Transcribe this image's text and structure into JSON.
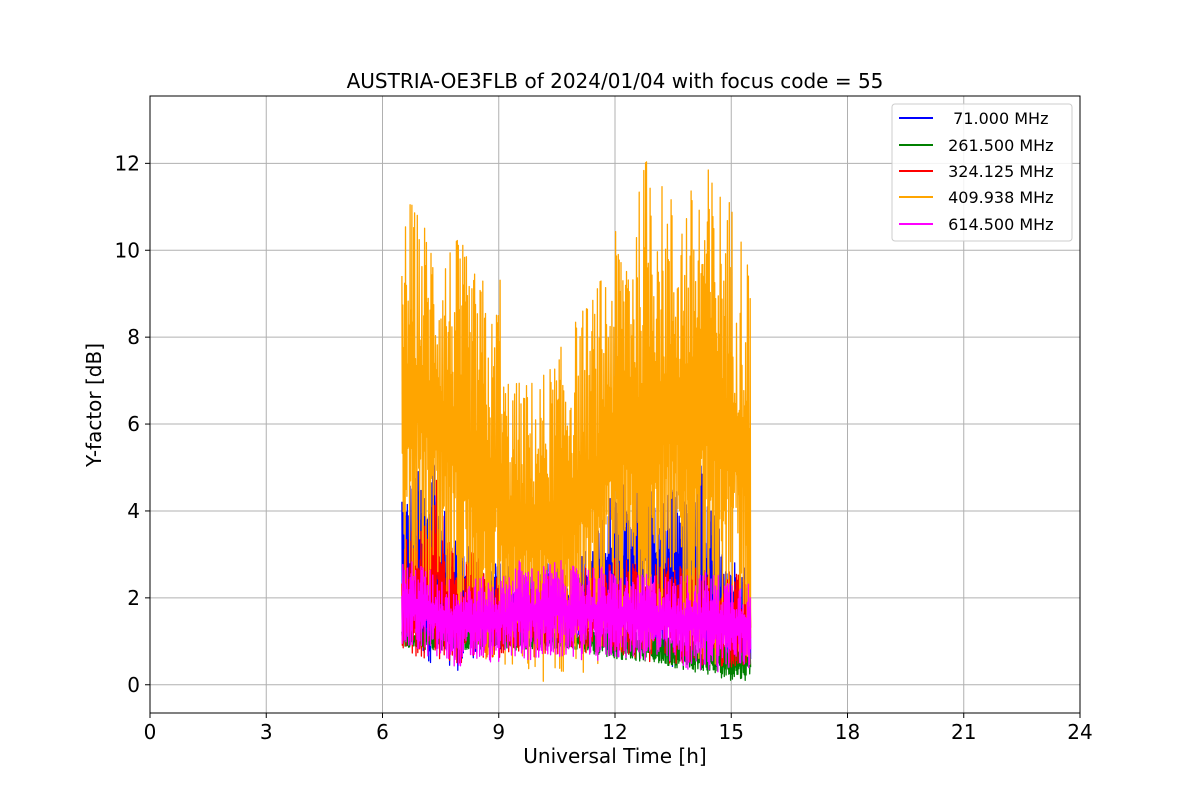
{
  "chart_data": {
    "type": "line",
    "title": "AUSTRIA-OE3FLB of 2024/01/04 with focus code = 55",
    "xlabel": "Universal Time [h]",
    "ylabel": "Y-factor [dB]",
    "xlim": [
      0,
      24
    ],
    "ylim": [
      -0.65,
      13.55
    ],
    "xticks": [
      0,
      3,
      6,
      9,
      12,
      15,
      18,
      21,
      24
    ],
    "yticks": [
      0,
      2,
      4,
      6,
      8,
      10,
      12
    ],
    "grid": true,
    "legend_position": "top-right",
    "series": [
      {
        "name": "  71.000 MHz",
        "color": "#0000ff",
        "x": [
          6.5,
          6.6,
          6.8,
          7.0,
          7.2,
          7.3,
          7.5,
          7.7,
          8.0,
          8.3,
          8.6,
          9.0,
          9.5,
          10.0,
          10.5,
          11.0,
          11.5,
          11.8,
          12.0,
          12.2,
          12.5,
          12.7,
          12.8,
          12.9,
          13.0,
          13.2,
          13.4,
          13.6,
          13.8,
          14.0,
          14.2,
          14.3,
          14.5,
          14.8,
          15.0,
          15.3,
          15.5
        ],
        "min": [
          1.0,
          0.9,
          0.8,
          0.6,
          0.5,
          0.5,
          0.4,
          0.0,
          0.4,
          0.6,
          0.7,
          0.8,
          0.8,
          0.8,
          0.8,
          0.9,
          0.9,
          0.8,
          0.8,
          0.8,
          0.8,
          0.7,
          0.7,
          0.7,
          0.7,
          0.6,
          0.4,
          0.4,
          0.5,
          0.4,
          0.4,
          0.6,
          0.5,
          0.4,
          0.3,
          0.4,
          0.4
        ],
        "max": [
          4.8,
          4.3,
          5.2,
          4.8,
          5.0,
          6.5,
          4.2,
          3.8,
          3.5,
          3.1,
          3.0,
          2.8,
          2.8,
          2.8,
          2.8,
          2.9,
          3.4,
          4.2,
          4.6,
          4.7,
          4.8,
          5.9,
          6.6,
          5.8,
          4.5,
          4.2,
          4.6,
          4.5,
          4.2,
          4.6,
          5.3,
          4.8,
          4.0,
          3.6,
          3.0,
          2.8,
          2.8
        ]
      },
      {
        "name": " 261.500 MHz",
        "color": "#008000",
        "x": [
          6.5,
          7.0,
          8.0,
          9.0,
          10.0,
          11.0,
          12.0,
          13.0,
          13.5,
          14.0,
          14.5,
          15.0,
          15.5
        ],
        "min": [
          0.9,
          0.8,
          0.8,
          0.8,
          0.8,
          0.8,
          0.6,
          0.5,
          0.4,
          0.3,
          0.2,
          0.1,
          0.1
        ],
        "max": [
          1.3,
          1.3,
          1.3,
          1.3,
          1.3,
          1.3,
          1.3,
          1.2,
          1.1,
          1.0,
          1.0,
          1.0,
          1.0
        ]
      },
      {
        "name": " 324.125 MHz",
        "color": "#ff0000",
        "x": [
          6.5,
          6.7,
          7.0,
          7.2,
          7.4,
          7.6,
          8.0,
          8.5,
          9.0,
          9.5,
          10.0,
          10.5,
          11.0,
          11.5,
          11.8,
          12.0,
          12.5,
          13.0,
          13.5,
          14.0,
          14.5,
          15.0,
          15.5
        ],
        "min": [
          0.8,
          0.7,
          0.6,
          0.6,
          0.6,
          0.5,
          0.5,
          0.6,
          0.6,
          0.6,
          0.6,
          0.7,
          0.7,
          0.6,
          0.7,
          0.7,
          0.6,
          0.5,
          0.5,
          0.4,
          0.4,
          0.4,
          0.4
        ],
        "max": [
          3.3,
          3.6,
          4.0,
          3.8,
          5.1,
          3.6,
          3.2,
          3.0,
          2.5,
          2.5,
          2.5,
          2.6,
          2.7,
          2.8,
          3.0,
          3.0,
          2.8,
          3.0,
          2.9,
          2.8,
          2.7,
          2.6,
          2.5
        ]
      },
      {
        "name": " 409.938 MHz",
        "color": "#ffa500",
        "x": [
          6.5,
          6.7,
          7.0,
          7.3,
          7.6,
          8.0,
          8.3,
          8.6,
          8.9,
          9.0,
          9.1,
          9.5,
          10.0,
          10.5,
          11.0,
          11.5,
          12.0,
          12.3,
          12.6,
          12.9,
          13.2,
          13.5,
          14.0,
          14.3,
          14.6,
          15.0,
          15.3,
          15.5
        ],
        "min": [
          2.0,
          2.4,
          2.0,
          1.6,
          1.2,
          0.8,
          0.6,
          0.4,
          0.3,
          0.3,
          0.2,
          0.1,
          0.0,
          0.1,
          0.2,
          0.4,
          0.6,
          0.6,
          0.7,
          0.8,
          0.8,
          0.8,
          0.6,
          0.5,
          0.4,
          0.4,
          0.4,
          0.4
        ],
        "max": [
          10.5,
          11.2,
          10.8,
          10.6,
          10.3,
          10.3,
          9.6,
          9.4,
          8.2,
          10.8,
          7.4,
          7.0,
          7.1,
          7.6,
          8.5,
          9.1,
          10.4,
          11.0,
          11.3,
          12.9,
          11.6,
          11.4,
          11.5,
          12.1,
          11.7,
          11.3,
          10.5,
          9.8
        ]
      },
      {
        "name": " 614.500 MHz",
        "color": "#ff00ff",
        "x": [
          6.5,
          7.0,
          7.5,
          8.0,
          8.5,
          9.0,
          9.5,
          10.0,
          10.5,
          11.0,
          11.5,
          12.0,
          12.5,
          13.0,
          13.5,
          14.0,
          14.5,
          15.0,
          15.5
        ],
        "min": [
          0.8,
          0.7,
          0.5,
          0.4,
          0.5,
          0.5,
          0.6,
          0.5,
          0.6,
          0.6,
          0.5,
          0.6,
          0.6,
          0.5,
          0.4,
          0.3,
          0.3,
          0.3,
          0.3
        ],
        "max": [
          2.9,
          2.8,
          2.5,
          2.4,
          2.5,
          2.4,
          2.9,
          2.7,
          2.9,
          2.7,
          2.8,
          2.6,
          2.5,
          2.6,
          2.5,
          2.6,
          2.6,
          2.5,
          2.4
        ]
      }
    ]
  }
}
